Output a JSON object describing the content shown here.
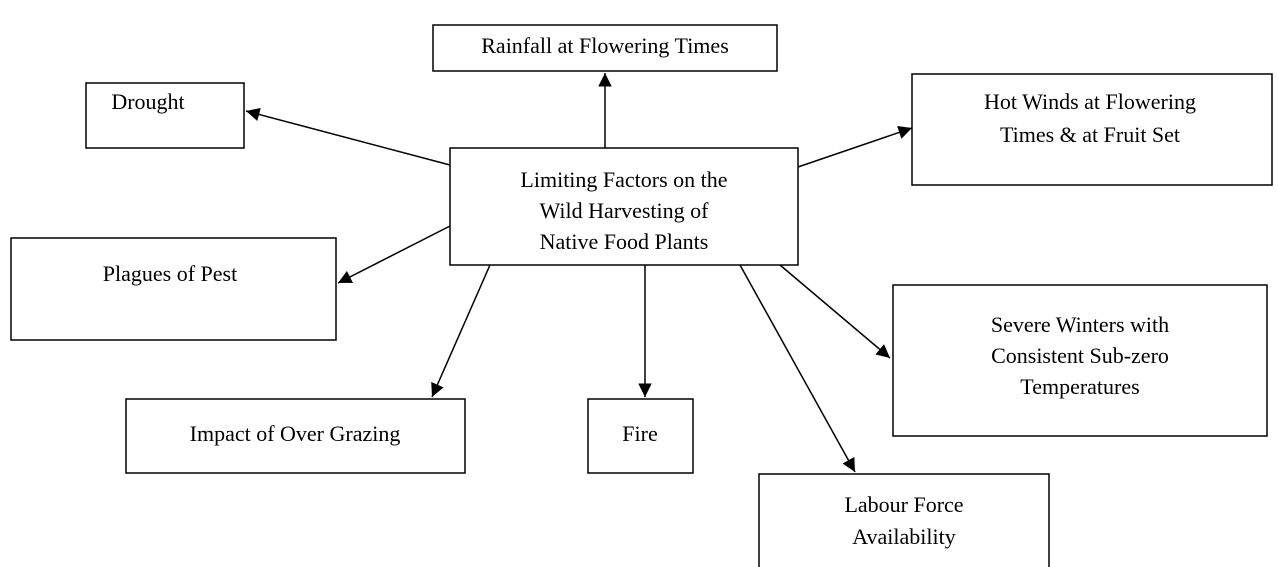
{
  "nodes": [
    {
      "lines": [
        "Limiting Factors on the",
        "Wild Harvesting of",
        "Native Food Plants"
      ]
    },
    {
      "lines": [
        "Rainfall at Flowering Times"
      ]
    },
    {
      "lines": [
        "Drought"
      ]
    },
    {
      "lines": [
        "Hot Winds at Flowering",
        "Times & at Fruit Set"
      ]
    },
    {
      "lines": [
        "Plagues of Pest"
      ]
    },
    {
      "lines": [
        "Severe Winters with",
        "Consistent Sub-zero",
        "Temperatures"
      ]
    },
    {
      "lines": [
        "Impact of Over Grazing"
      ]
    },
    {
      "lines": [
        "Fire"
      ]
    },
    {
      "lines": [
        "Labour Force",
        "Availability"
      ]
    }
  ]
}
